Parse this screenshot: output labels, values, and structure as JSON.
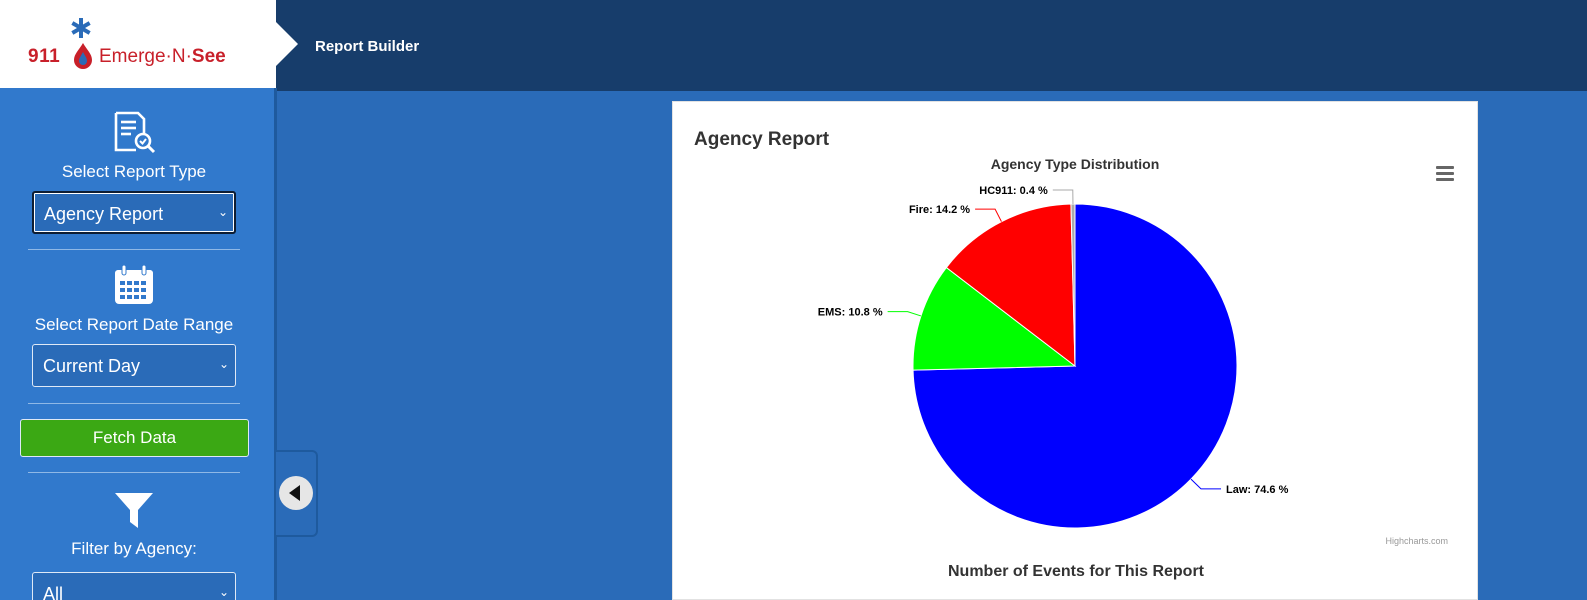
{
  "logo": {
    "number": "911",
    "brand_main": "Emerge·N·",
    "brand_bold": "See",
    "colors": {
      "red": "#c8202a",
      "blue": "#2a6bb8"
    }
  },
  "header": {
    "title": "Report Builder",
    "background": "#173d6b"
  },
  "sidebar": {
    "report_type": {
      "icon": "report-search-icon",
      "label": "Select Report Type",
      "selected": "Agency Report"
    },
    "date_range": {
      "icon": "calendar-icon",
      "label": "Select Report Date Range",
      "selected": "Current Day"
    },
    "fetch_button": "Fetch Data",
    "filter": {
      "icon": "filter-icon",
      "label": "Filter by Agency:",
      "selected": "All"
    },
    "collapse_icon": "chevron-left-icon"
  },
  "card": {
    "title": "Agency Report",
    "menu_icon": "hamburger-menu-icon",
    "footer_title": "Number of Events for This Report"
  },
  "chart_data": {
    "type": "pie",
    "title": "Agency Type Distribution",
    "credits": "Highcharts.com",
    "slices": [
      {
        "name": "Law",
        "value": 74.6,
        "color": "#0000ff",
        "label": "Law: 74.6 %"
      },
      {
        "name": "EMS",
        "value": 10.8,
        "color": "#00ff00",
        "label": "EMS: 10.8 %"
      },
      {
        "name": "Fire",
        "value": 14.2,
        "color": "#ff0000",
        "label": "Fire: 14.2 %"
      },
      {
        "name": "HC911",
        "value": 0.4,
        "color": "#aaaaaa",
        "label": "HC911: 0.4 %"
      }
    ]
  }
}
